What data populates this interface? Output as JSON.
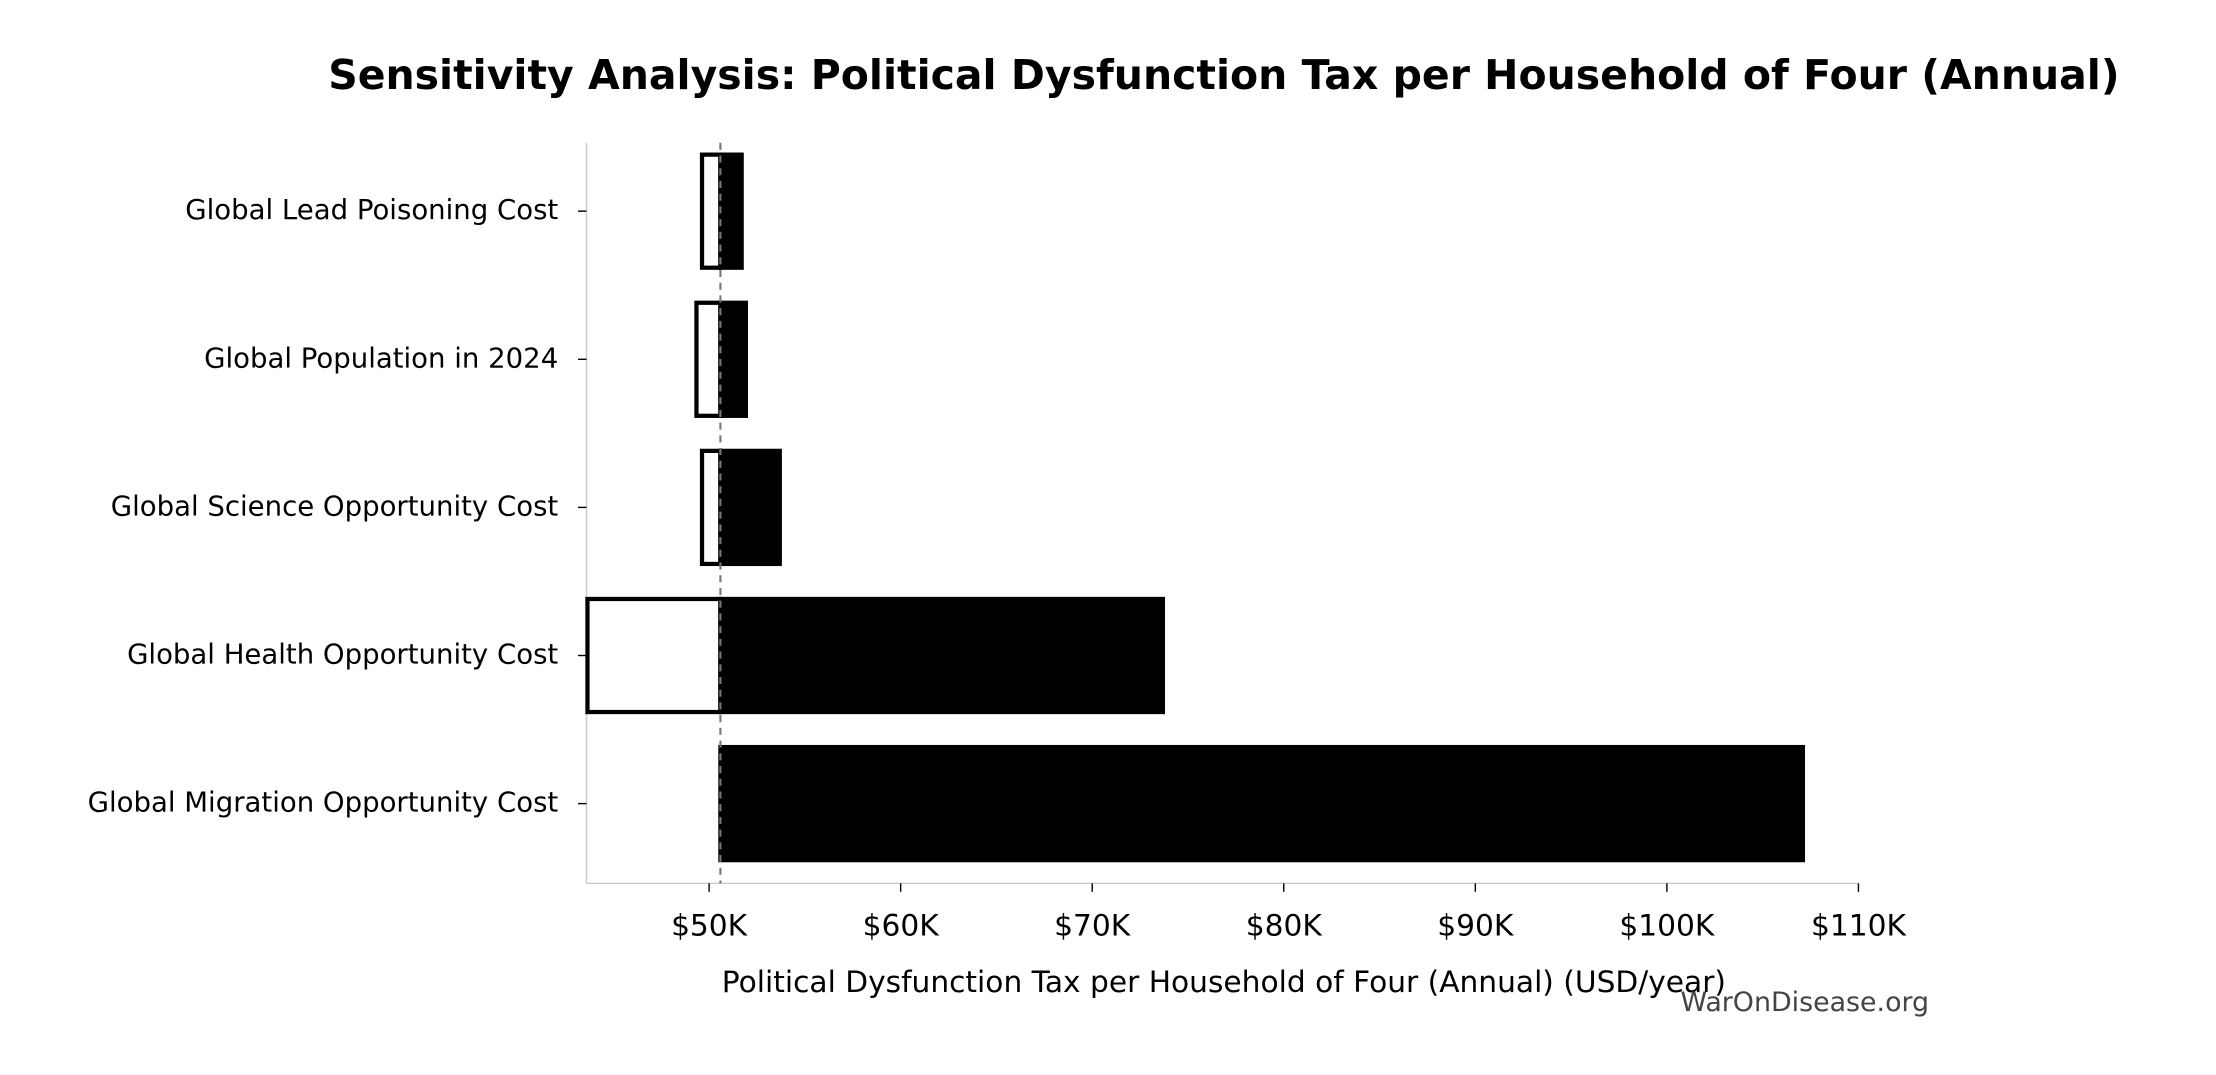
{
  "chart_data": {
    "type": "tornado",
    "title": "Sensitivity Analysis: Political Dysfunction Tax per Household of Four (Annual)",
    "x_label": "Political Dysfunction Tax per Household of Four (Annual) (USD/year)",
    "watermark": "WarOnDisease.org",
    "categories": [
      "Global Lead Poisoning Cost",
      "Global Population in 2024",
      "Global Science Opportunity Cost",
      "Global Health Opportunity Cost",
      "Global Migration Opportunity Cost"
    ],
    "baseline": 50590,
    "low_values": [
      49630,
      49340,
      49630,
      43650,
      50590
    ],
    "high_values": [
      51700,
      51920,
      53690,
      73690,
      107100
    ],
    "low_color": "#ffffff",
    "high_color": "#000000",
    "edge_color": "#000000",
    "xlim": [
      43600,
      110000
    ],
    "xticks": [
      {
        "value": 50000,
        "label": "$50K"
      },
      {
        "value": 60000,
        "label": "$60K"
      },
      {
        "value": 70000,
        "label": "$70K"
      },
      {
        "value": 80000,
        "label": "$80K"
      },
      {
        "value": 90000,
        "label": "$90K"
      },
      {
        "value": 100000,
        "label": "$100K"
      },
      {
        "value": 110000,
        "label": "$110K"
      }
    ]
  }
}
